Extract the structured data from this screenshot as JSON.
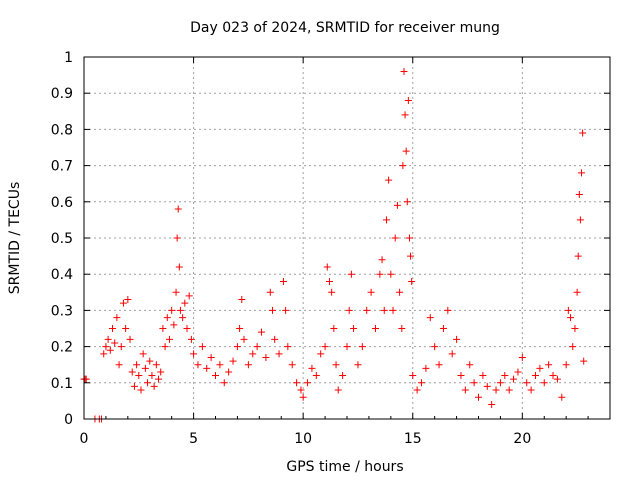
{
  "chart_data": {
    "type": "scatter",
    "title": "Day 023 of 2024, SRMTID for receiver mung",
    "xlabel": "GPS time / hours",
    "ylabel": "SRMTID / TECUs",
    "xlim": [
      0,
      24
    ],
    "ylim": [
      0,
      1
    ],
    "xticks": [
      0,
      5,
      10,
      15,
      20
    ],
    "xtick_labels": [
      "0",
      "5",
      "10",
      "15",
      "20"
    ],
    "yticks": [
      0,
      0.1,
      0.2,
      0.3,
      0.4,
      0.5,
      0.6,
      0.7,
      0.8,
      0.9,
      1
    ],
    "ytick_labels": [
      "0",
      "0.1",
      "0.2",
      "0.3",
      "0.4",
      "0.5",
      "0.6",
      "0.7",
      "0.8",
      "0.9",
      "1"
    ],
    "grid": true,
    "marker": "plus",
    "color": "#ff0000",
    "series": [
      {
        "name": "SRMTID",
        "points": [
          [
            0.0,
            0.11
          ],
          [
            0.05,
            0.11
          ],
          [
            0.1,
            0.11
          ],
          [
            0.5,
            0.0
          ],
          [
            0.7,
            0.0
          ],
          [
            0.8,
            0.0
          ],
          [
            0.9,
            0.18
          ],
          [
            1.0,
            0.2
          ],
          [
            1.1,
            0.22
          ],
          [
            1.2,
            0.19
          ],
          [
            1.3,
            0.25
          ],
          [
            1.4,
            0.21
          ],
          [
            1.5,
            0.28
          ],
          [
            1.6,
            0.15
          ],
          [
            1.7,
            0.2
          ],
          [
            1.8,
            0.32
          ],
          [
            1.9,
            0.25
          ],
          [
            2.0,
            0.33
          ],
          [
            2.1,
            0.22
          ],
          [
            2.2,
            0.13
          ],
          [
            2.3,
            0.09
          ],
          [
            2.4,
            0.15
          ],
          [
            2.5,
            0.12
          ],
          [
            2.6,
            0.08
          ],
          [
            2.7,
            0.18
          ],
          [
            2.8,
            0.14
          ],
          [
            2.9,
            0.1
          ],
          [
            3.0,
            0.16
          ],
          [
            3.1,
            0.12
          ],
          [
            3.2,
            0.09
          ],
          [
            3.3,
            0.15
          ],
          [
            3.4,
            0.11
          ],
          [
            3.5,
            0.13
          ],
          [
            3.6,
            0.25
          ],
          [
            3.7,
            0.2
          ],
          [
            3.8,
            0.28
          ],
          [
            3.9,
            0.22
          ],
          [
            4.0,
            0.3
          ],
          [
            4.1,
            0.26
          ],
          [
            4.2,
            0.35
          ],
          [
            4.25,
            0.5
          ],
          [
            4.3,
            0.58
          ],
          [
            4.35,
            0.42
          ],
          [
            4.4,
            0.3
          ],
          [
            4.5,
            0.28
          ],
          [
            4.6,
            0.32
          ],
          [
            4.7,
            0.25
          ],
          [
            4.8,
            0.34
          ],
          [
            4.9,
            0.22
          ],
          [
            5.0,
            0.18
          ],
          [
            5.2,
            0.15
          ],
          [
            5.4,
            0.2
          ],
          [
            5.6,
            0.14
          ],
          [
            5.8,
            0.17
          ],
          [
            6.0,
            0.12
          ],
          [
            6.2,
            0.15
          ],
          [
            6.4,
            0.1
          ],
          [
            6.6,
            0.13
          ],
          [
            6.8,
            0.16
          ],
          [
            7.0,
            0.2
          ],
          [
            7.1,
            0.25
          ],
          [
            7.2,
            0.33
          ],
          [
            7.3,
            0.22
          ],
          [
            7.5,
            0.15
          ],
          [
            7.7,
            0.18
          ],
          [
            7.9,
            0.2
          ],
          [
            8.1,
            0.24
          ],
          [
            8.3,
            0.17
          ],
          [
            8.5,
            0.35
          ],
          [
            8.6,
            0.3
          ],
          [
            8.7,
            0.22
          ],
          [
            8.9,
            0.18
          ],
          [
            9.1,
            0.38
          ],
          [
            9.2,
            0.3
          ],
          [
            9.3,
            0.2
          ],
          [
            9.5,
            0.15
          ],
          [
            9.7,
            0.1
          ],
          [
            9.9,
            0.08
          ],
          [
            10.0,
            0.06
          ],
          [
            10.2,
            0.1
          ],
          [
            10.4,
            0.14
          ],
          [
            10.6,
            0.12
          ],
          [
            10.8,
            0.18
          ],
          [
            11.0,
            0.2
          ],
          [
            11.1,
            0.42
          ],
          [
            11.2,
            0.38
          ],
          [
            11.3,
            0.35
          ],
          [
            11.4,
            0.25
          ],
          [
            11.5,
            0.15
          ],
          [
            11.6,
            0.08
          ],
          [
            11.8,
            0.12
          ],
          [
            12.0,
            0.2
          ],
          [
            12.1,
            0.3
          ],
          [
            12.2,
            0.4
          ],
          [
            12.3,
            0.25
          ],
          [
            12.5,
            0.15
          ],
          [
            12.7,
            0.2
          ],
          [
            12.9,
            0.3
          ],
          [
            13.1,
            0.35
          ],
          [
            13.3,
            0.25
          ],
          [
            13.5,
            0.4
          ],
          [
            13.6,
            0.44
          ],
          [
            13.7,
            0.3
          ],
          [
            13.8,
            0.55
          ],
          [
            13.9,
            0.66
          ],
          [
            14.0,
            0.4
          ],
          [
            14.1,
            0.3
          ],
          [
            14.2,
            0.5
          ],
          [
            14.3,
            0.59
          ],
          [
            14.4,
            0.35
          ],
          [
            14.5,
            0.25
          ],
          [
            14.55,
            0.7
          ],
          [
            14.6,
            0.96
          ],
          [
            14.65,
            0.84
          ],
          [
            14.7,
            0.74
          ],
          [
            14.75,
            0.6
          ],
          [
            14.8,
            0.88
          ],
          [
            14.85,
            0.5
          ],
          [
            14.9,
            0.45
          ],
          [
            14.95,
            0.38
          ],
          [
            15.0,
            0.12
          ],
          [
            15.2,
            0.08
          ],
          [
            15.4,
            0.1
          ],
          [
            15.6,
            0.14
          ],
          [
            15.8,
            0.28
          ],
          [
            16.0,
            0.2
          ],
          [
            16.2,
            0.15
          ],
          [
            16.4,
            0.25
          ],
          [
            16.6,
            0.3
          ],
          [
            16.8,
            0.18
          ],
          [
            17.0,
            0.22
          ],
          [
            17.2,
            0.12
          ],
          [
            17.4,
            0.08
          ],
          [
            17.6,
            0.15
          ],
          [
            17.8,
            0.1
          ],
          [
            18.0,
            0.06
          ],
          [
            18.2,
            0.12
          ],
          [
            18.4,
            0.09
          ],
          [
            18.6,
            0.04
          ],
          [
            18.8,
            0.08
          ],
          [
            19.0,
            0.1
          ],
          [
            19.2,
            0.12
          ],
          [
            19.4,
            0.08
          ],
          [
            19.6,
            0.11
          ],
          [
            19.8,
            0.13
          ],
          [
            20.0,
            0.17
          ],
          [
            20.2,
            0.1
          ],
          [
            20.4,
            0.08
          ],
          [
            20.6,
            0.12
          ],
          [
            20.8,
            0.14
          ],
          [
            21.0,
            0.1
          ],
          [
            21.2,
            0.15
          ],
          [
            21.4,
            0.12
          ],
          [
            21.6,
            0.11
          ],
          [
            21.8,
            0.06
          ],
          [
            22.0,
            0.15
          ],
          [
            22.1,
            0.3
          ],
          [
            22.2,
            0.28
          ],
          [
            22.3,
            0.2
          ],
          [
            22.4,
            0.25
          ],
          [
            22.5,
            0.35
          ],
          [
            22.55,
            0.45
          ],
          [
            22.6,
            0.62
          ],
          [
            22.65,
            0.55
          ],
          [
            22.7,
            0.68
          ],
          [
            22.75,
            0.79
          ],
          [
            22.8,
            0.16
          ]
        ]
      }
    ]
  }
}
